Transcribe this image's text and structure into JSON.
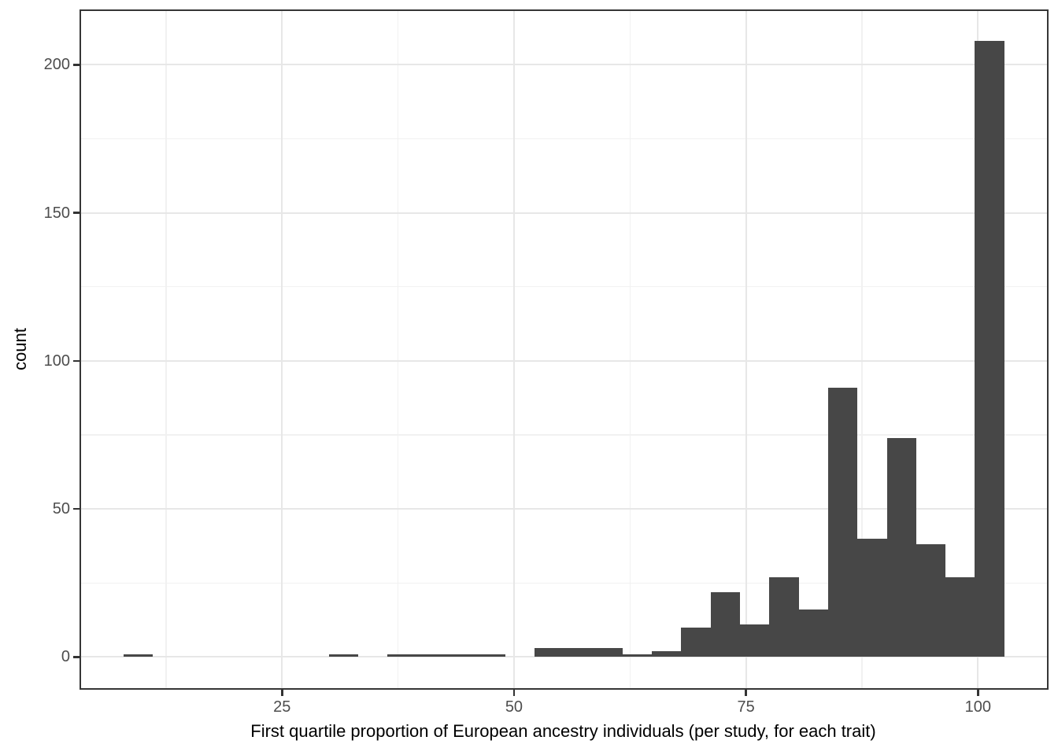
{
  "chart_data": {
    "type": "bar",
    "subtype": "histogram",
    "title": "",
    "xlabel": "First quartile proportion of European ancestry individuals (per study, for each trait)",
    "ylabel": "count",
    "x_ticks": [
      25,
      50,
      75,
      100
    ],
    "x_minor_ticks": [
      12.5,
      37.5,
      62.5,
      87.5
    ],
    "y_ticks": [
      0,
      50,
      100,
      150,
      200
    ],
    "y_minor_ticks": [
      25,
      75,
      125,
      175
    ],
    "x_domain": [
      3.3,
      107.4
    ],
    "y_domain": [
      -10.4,
      218.3
    ],
    "bins": {
      "start": 7.85,
      "width": 3.165
    },
    "counts": [
      1,
      0,
      0,
      0,
      0,
      0,
      0,
      1,
      0,
      1,
      1,
      1,
      1,
      0,
      3,
      3,
      3,
      1,
      2,
      10,
      22,
      11,
      27,
      16,
      91,
      40,
      74,
      38,
      27,
      208
    ],
    "grid": true,
    "legend": "none",
    "colors": {
      "bar": "#474747",
      "panel_background": "#ffffff",
      "panel_border": "#363636",
      "grid_major": "#e7e7e7",
      "grid_minor": "#f1f1f1",
      "tick_mark": "#333333",
      "tick_label": "#4d4d4d",
      "axis_title": "#000000"
    }
  }
}
